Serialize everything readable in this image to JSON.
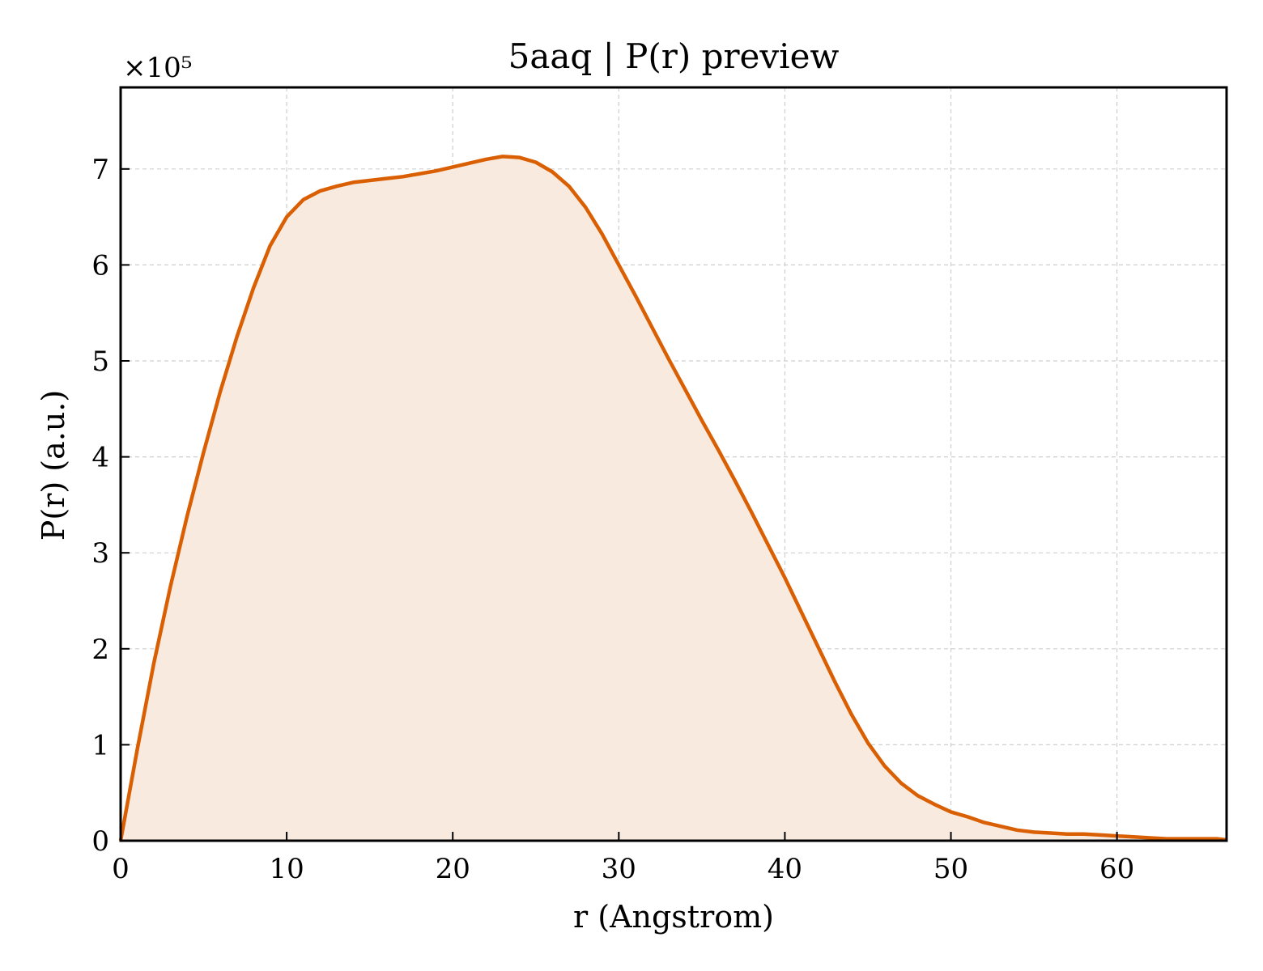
{
  "chart_data": {
    "type": "area",
    "title": "5aaq | P(r) preview",
    "xlabel": "r (Angstrom)",
    "ylabel": "P(r) (a.u.)",
    "y_multiplier_label": "×10⁵",
    "xlim": [
      0,
      66.6
    ],
    "ylim": [
      0,
      7.85
    ],
    "y_unit_scale": 100000,
    "xticks": [
      0,
      10,
      20,
      30,
      40,
      50,
      60
    ],
    "yticks": [
      0,
      1,
      2,
      3,
      4,
      5,
      6,
      7
    ],
    "grid": true,
    "line_color": "#d95f02",
    "fill_color": "#f9eae0",
    "series": [
      {
        "x": [
          0,
          1,
          2,
          3,
          4,
          5,
          6,
          7,
          8,
          9,
          10,
          11,
          12,
          13,
          14,
          15,
          16,
          17,
          18,
          19,
          20,
          21,
          22,
          23,
          24,
          25,
          26,
          27,
          28,
          29,
          30,
          31,
          32,
          33,
          34,
          35,
          36,
          37,
          38,
          39,
          40,
          41,
          42,
          43,
          44,
          45,
          46,
          47,
          48,
          49,
          50,
          51,
          52,
          53,
          54,
          55,
          56,
          57,
          58,
          59,
          60,
          61,
          62,
          63,
          64,
          65,
          66,
          66.6
        ],
        "y": [
          0,
          0.95,
          1.85,
          2.65,
          3.38,
          4.05,
          4.68,
          5.25,
          5.76,
          6.2,
          6.5,
          6.68,
          6.77,
          6.82,
          6.86,
          6.88,
          6.9,
          6.92,
          6.95,
          6.98,
          7.02,
          7.06,
          7.1,
          7.13,
          7.12,
          7.07,
          6.97,
          6.82,
          6.6,
          6.32,
          6.0,
          5.68,
          5.35,
          5.02,
          4.7,
          4.38,
          4.07,
          3.75,
          3.42,
          3.08,
          2.74,
          2.38,
          2.02,
          1.66,
          1.32,
          1.02,
          0.78,
          0.6,
          0.47,
          0.38,
          0.3,
          0.25,
          0.19,
          0.15,
          0.11,
          0.09,
          0.08,
          0.07,
          0.07,
          0.06,
          0.05,
          0.04,
          0.03,
          0.02,
          0.02,
          0.02,
          0.02,
          0.01
        ]
      }
    ]
  }
}
